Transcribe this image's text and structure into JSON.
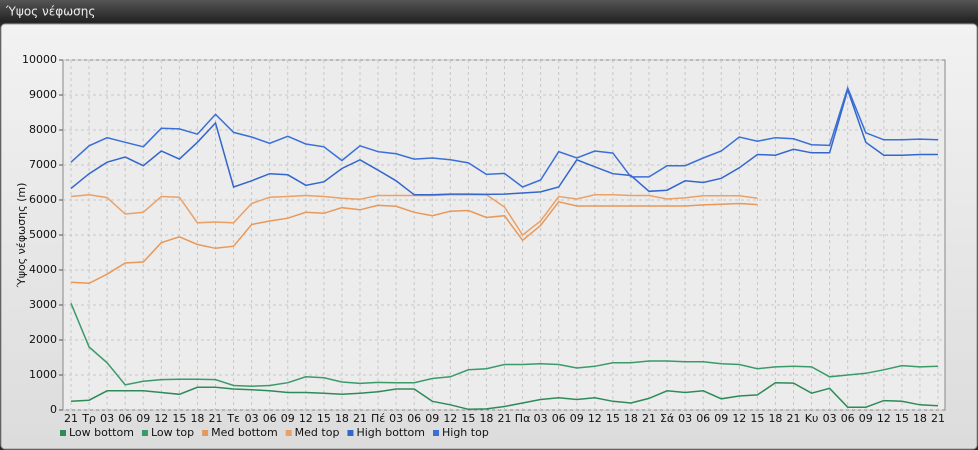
{
  "window_title": "Ύψος νέφωσης",
  "chart_data": {
    "type": "line",
    "y_label": "Ύψος νέφωσης (m)",
    "categories": [
      "21",
      "Τρ",
      "03",
      "06",
      "09",
      "12",
      "15",
      "18",
      "21",
      "Τε",
      "03",
      "06",
      "09",
      "12",
      "15",
      "18",
      "21",
      "Πέ",
      "03",
      "06",
      "09",
      "12",
      "15",
      "18",
      "21",
      "Πα",
      "03",
      "06",
      "09",
      "12",
      "15",
      "18",
      "21",
      "Σά",
      "03",
      "06",
      "09",
      "12",
      "15",
      "18",
      "21",
      "Κυ",
      "03",
      "06",
      "09",
      "12",
      "15",
      "18",
      "21"
    ],
    "ylim": [
      0,
      10000
    ],
    "yticks": [
      0,
      1000,
      2000,
      3000,
      4000,
      5000,
      6000,
      7000,
      8000,
      9000,
      10000
    ],
    "grid": true,
    "legend": "bottom",
    "series": [
      {
        "name": "Low bottom",
        "color": "#2e8b57",
        "values": [
          250,
          280,
          550,
          550,
          550,
          500,
          450,
          650,
          650,
          600,
          580,
          550,
          500,
          500,
          480,
          450,
          480,
          520,
          600,
          600,
          250,
          150,
          20,
          30,
          100,
          200,
          300,
          350,
          300,
          350,
          250,
          200,
          330,
          550,
          500,
          550,
          320,
          400,
          430,
          780,
          770,
          480,
          620,
          80,
          80,
          270,
          250,
          150,
          120
        ]
      },
      {
        "name": "Low top",
        "color": "#3a9a68",
        "values": [
          3050,
          1800,
          1350,
          720,
          820,
          870,
          880,
          880,
          870,
          700,
          680,
          700,
          780,
          950,
          920,
          800,
          760,
          790,
          780,
          780,
          900,
          950,
          1150,
          1180,
          1300,
          1300,
          1320,
          1300,
          1200,
          1250,
          1350,
          1350,
          1400,
          1400,
          1380,
          1380,
          1320,
          1300,
          1180,
          1230,
          1250,
          1230,
          950,
          1000,
          1050,
          1150,
          1270,
          1230,
          1250
        ]
      },
      {
        "name": "Med bottom",
        "color": "#e89858",
        "values": [
          3650,
          3620,
          3880,
          4200,
          4230,
          4780,
          4950,
          4730,
          4620,
          4680,
          5300,
          5400,
          5480,
          5650,
          5620,
          5780,
          5720,
          5850,
          5820,
          5650,
          5550,
          5680,
          5700,
          5500,
          5550,
          4850,
          5270,
          5950,
          5830,
          5830,
          5830,
          5830,
          5830,
          5830,
          5830,
          5860,
          5880,
          5900,
          5870,
          null,
          null,
          null,
          null,
          null,
          null,
          null,
          null,
          null,
          null
        ]
      },
      {
        "name": "Med top",
        "color": "#eba065",
        "values": [
          6100,
          6150,
          6070,
          5600,
          5650,
          6100,
          6080,
          5350,
          5370,
          5350,
          5900,
          6080,
          6100,
          6130,
          6100,
          6050,
          6020,
          6130,
          6130,
          6130,
          6130,
          6150,
          6150,
          6150,
          5800,
          5000,
          5400,
          6100,
          6030,
          6150,
          6150,
          6130,
          6130,
          6030,
          6060,
          6120,
          6120,
          6120,
          6050,
          null,
          null,
          null,
          null,
          null,
          null,
          null,
          null,
          null,
          null
        ]
      },
      {
        "name": "High bottom",
        "color": "#3366cc",
        "values": [
          6330,
          6750,
          7080,
          7230,
          6980,
          7400,
          7170,
          7650,
          8200,
          6370,
          6550,
          6750,
          6720,
          6420,
          6520,
          6900,
          7150,
          6850,
          6550,
          6150,
          6150,
          6170,
          6170,
          6160,
          6170,
          6200,
          6230,
          6370,
          7150,
          6950,
          6750,
          6700,
          6250,
          6280,
          6550,
          6500,
          6620,
          6920,
          7300,
          7280,
          7450,
          7350,
          7350,
          9150,
          7650,
          7280,
          7280,
          7300,
          7300
        ]
      },
      {
        "name": "High top",
        "color": "#3a6fd8",
        "values": [
          7080,
          7550,
          7780,
          7650,
          7520,
          8050,
          8030,
          7880,
          8450,
          7930,
          7800,
          7620,
          7820,
          7600,
          7520,
          7130,
          7550,
          7380,
          7320,
          7170,
          7200,
          7150,
          7060,
          6730,
          6760,
          6370,
          6570,
          7380,
          7200,
          7400,
          7340,
          6660,
          6660,
          6980,
          6980,
          7200,
          7400,
          7800,
          7680,
          7780,
          7750,
          7580,
          7560,
          9200,
          7920,
          7720,
          7720,
          7740,
          7720
        ]
      }
    ]
  }
}
